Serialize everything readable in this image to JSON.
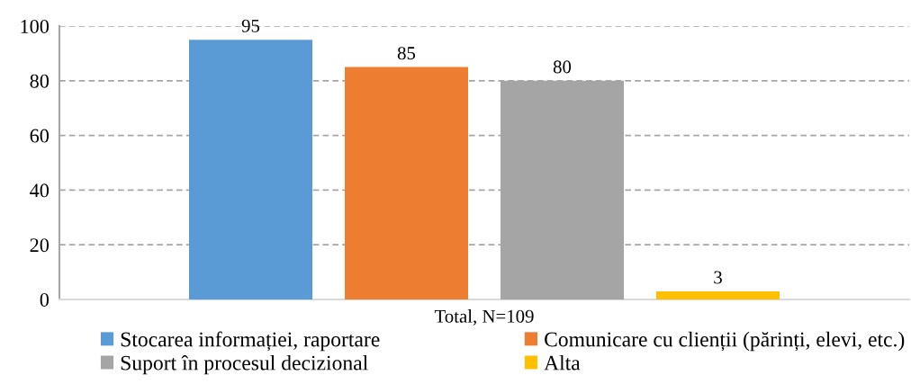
{
  "chart_data": {
    "type": "bar",
    "categories": [
      "Total, N=109"
    ],
    "series": [
      {
        "name": "Stocarea informației, raportare",
        "color": "#5b9bd5",
        "values": [
          95
        ]
      },
      {
        "name": "Comunicare cu clienții (părinți, elevi, etc.)",
        "color": "#ed7d31",
        "values": [
          85
        ]
      },
      {
        "name": "Suport în procesul decizional",
        "color": "#a5a5a5",
        "values": [
          80
        ]
      },
      {
        "name": "Alta",
        "color": "#ffc000",
        "values": [
          3
        ]
      }
    ],
    "ylim": [
      0,
      100
    ],
    "yticks": [
      0,
      20,
      40,
      60,
      80,
      100
    ],
    "grid": "y",
    "legend": "bottom",
    "data_labels": true
  }
}
